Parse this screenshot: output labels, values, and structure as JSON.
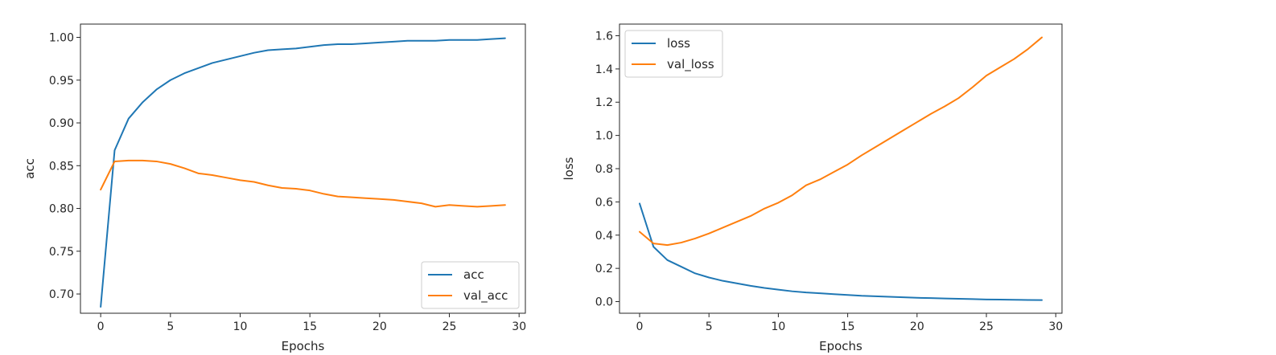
{
  "chart_data": [
    {
      "type": "line",
      "xlabel": "Epochs",
      "ylabel": "acc",
      "xlim": [
        -1.45,
        30.45
      ],
      "ylim": [
        0.6775,
        1.0155
      ],
      "xticks": [
        0,
        5,
        10,
        15,
        20,
        25,
        30
      ],
      "xtick_labels": [
        "0",
        "5",
        "10",
        "15",
        "20",
        "25",
        "30"
      ],
      "yticks": [
        0.7,
        0.75,
        0.8,
        0.85,
        0.9,
        0.95,
        1.0
      ],
      "ytick_labels": [
        "0.70",
        "0.75",
        "0.80",
        "0.85",
        "0.90",
        "0.95",
        "1.00"
      ],
      "legend_position": "lower-right",
      "x": [
        0,
        1,
        2,
        3,
        4,
        5,
        6,
        7,
        8,
        9,
        10,
        11,
        12,
        13,
        14,
        15,
        16,
        17,
        18,
        19,
        20,
        21,
        22,
        23,
        24,
        25,
        26,
        27,
        28,
        29
      ],
      "series": [
        {
          "name": "acc",
          "color": "#1f77b4",
          "values": [
            0.685,
            0.868,
            0.905,
            0.924,
            0.939,
            0.95,
            0.958,
            0.964,
            0.97,
            0.974,
            0.978,
            0.982,
            0.985,
            0.986,
            0.987,
            0.989,
            0.991,
            0.992,
            0.992,
            0.993,
            0.994,
            0.995,
            0.996,
            0.996,
            0.996,
            0.997,
            0.997,
            0.997,
            0.998,
            0.999
          ]
        },
        {
          "name": "val_acc",
          "color": "#ff7f0e",
          "values": [
            0.822,
            0.855,
            0.856,
            0.856,
            0.855,
            0.852,
            0.847,
            0.841,
            0.839,
            0.836,
            0.833,
            0.831,
            0.827,
            0.824,
            0.823,
            0.821,
            0.817,
            0.814,
            0.813,
            0.812,
            0.811,
            0.81,
            0.808,
            0.806,
            0.802,
            0.804,
            0.803,
            0.802,
            0.803,
            0.804
          ]
        }
      ]
    },
    {
      "type": "line",
      "xlabel": "Epochs",
      "ylabel": "loss",
      "xlim": [
        -1.45,
        30.45
      ],
      "ylim": [
        -0.07,
        1.67
      ],
      "xticks": [
        0,
        5,
        10,
        15,
        20,
        25,
        30
      ],
      "xtick_labels": [
        "0",
        "5",
        "10",
        "15",
        "20",
        "25",
        "30"
      ],
      "yticks": [
        0.0,
        0.2,
        0.4,
        0.6,
        0.8,
        1.0,
        1.2,
        1.4,
        1.6
      ],
      "ytick_labels": [
        "0.0",
        "0.2",
        "0.4",
        "0.6",
        "0.8",
        "1.0",
        "1.2",
        "1.4",
        "1.6"
      ],
      "legend_position": "upper-left",
      "x": [
        0,
        1,
        2,
        3,
        4,
        5,
        6,
        7,
        8,
        9,
        10,
        11,
        12,
        13,
        14,
        15,
        16,
        17,
        18,
        19,
        20,
        21,
        22,
        23,
        24,
        25,
        26,
        27,
        28,
        29
      ],
      "series": [
        {
          "name": "loss",
          "color": "#1f77b4",
          "values": [
            0.59,
            0.33,
            0.25,
            0.21,
            0.17,
            0.145,
            0.125,
            0.11,
            0.095,
            0.082,
            0.072,
            0.062,
            0.055,
            0.05,
            0.045,
            0.04,
            0.035,
            0.032,
            0.029,
            0.026,
            0.023,
            0.021,
            0.019,
            0.017,
            0.015,
            0.013,
            0.012,
            0.011,
            0.01,
            0.009
          ]
        },
        {
          "name": "val_loss",
          "color": "#ff7f0e",
          "values": [
            0.42,
            0.35,
            0.34,
            0.355,
            0.38,
            0.41,
            0.445,
            0.48,
            0.515,
            0.56,
            0.595,
            0.64,
            0.7,
            0.735,
            0.78,
            0.825,
            0.88,
            0.93,
            0.98,
            1.03,
            1.08,
            1.13,
            1.175,
            1.225,
            1.29,
            1.36,
            1.41,
            1.46,
            1.52,
            1.59
          ]
        }
      ]
    }
  ]
}
